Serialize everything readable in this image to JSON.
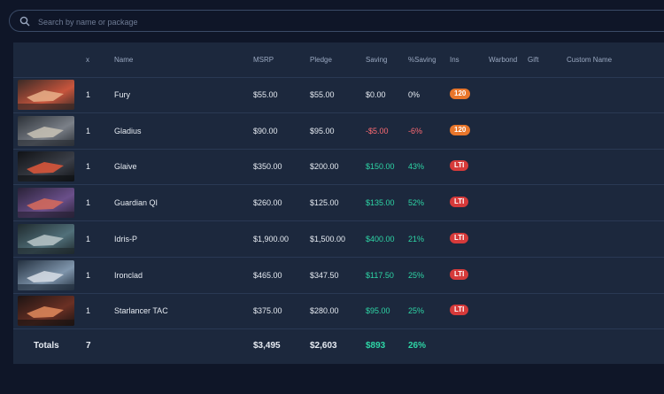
{
  "search": {
    "placeholder": "Search by name or package",
    "value": ""
  },
  "table": {
    "headers": [
      "x",
      "Name",
      "MSRP",
      "Pledge",
      "Saving",
      "%Saving",
      "Ins",
      "Warbond",
      "Gift",
      "Custom Name"
    ],
    "rows": [
      {
        "qty": "1",
        "name": "Fury",
        "msrp": "$55.00",
        "pledge": "$55.00",
        "saving": "$0.00",
        "pct": "0%",
        "ins": "120",
        "tone": "neutral",
        "badge": "orange",
        "img": "red"
      },
      {
        "qty": "1",
        "name": "Gladius",
        "msrp": "$90.00",
        "pledge": "$95.00",
        "saving": "-$5.00",
        "pct": "-6%",
        "ins": "120",
        "tone": "neg",
        "badge": "orange",
        "img": "grey"
      },
      {
        "qty": "1",
        "name": "Glaive",
        "msrp": "$350.00",
        "pledge": "$200.00",
        "saving": "$150.00",
        "pct": "43%",
        "ins": "LTI",
        "tone": "pos",
        "badge": "red",
        "img": "dark"
      },
      {
        "qty": "1",
        "name": "Guardian QI",
        "msrp": "$260.00",
        "pledge": "$125.00",
        "saving": "$135.00",
        "pct": "52%",
        "ins": "LTI",
        "tone": "pos",
        "badge": "red",
        "img": "purple"
      },
      {
        "qty": "1",
        "name": "Idris-P",
        "msrp": "$1,900.00",
        "pledge": "$1,500.00",
        "saving": "$400.00",
        "pct": "21%",
        "ins": "LTI",
        "tone": "pos",
        "badge": "red",
        "img": "teal"
      },
      {
        "qty": "1",
        "name": "Ironclad",
        "msrp": "$465.00",
        "pledge": "$347.50",
        "saving": "$117.50",
        "pct": "25%",
        "ins": "LTI",
        "tone": "pos",
        "badge": "red",
        "img": "bluegrey"
      },
      {
        "qty": "1",
        "name": "Starlancer TAC",
        "msrp": "$375.00",
        "pledge": "$280.00",
        "saving": "$95.00",
        "pct": "25%",
        "ins": "LTI",
        "tone": "pos",
        "badge": "red",
        "img": "ember"
      }
    ],
    "totals": {
      "label": "Totals",
      "qty": "7",
      "msrp": "$3,495",
      "pledge": "$2,603",
      "saving": "$893",
      "pct": "26%"
    }
  },
  "colors": {
    "background": "#0f1628",
    "table": "#1c283d",
    "positive": "#2ed6a6",
    "negative": "#ff6b73",
    "badge_orange": "#e8762b",
    "badge_red": "#d63a3a"
  }
}
